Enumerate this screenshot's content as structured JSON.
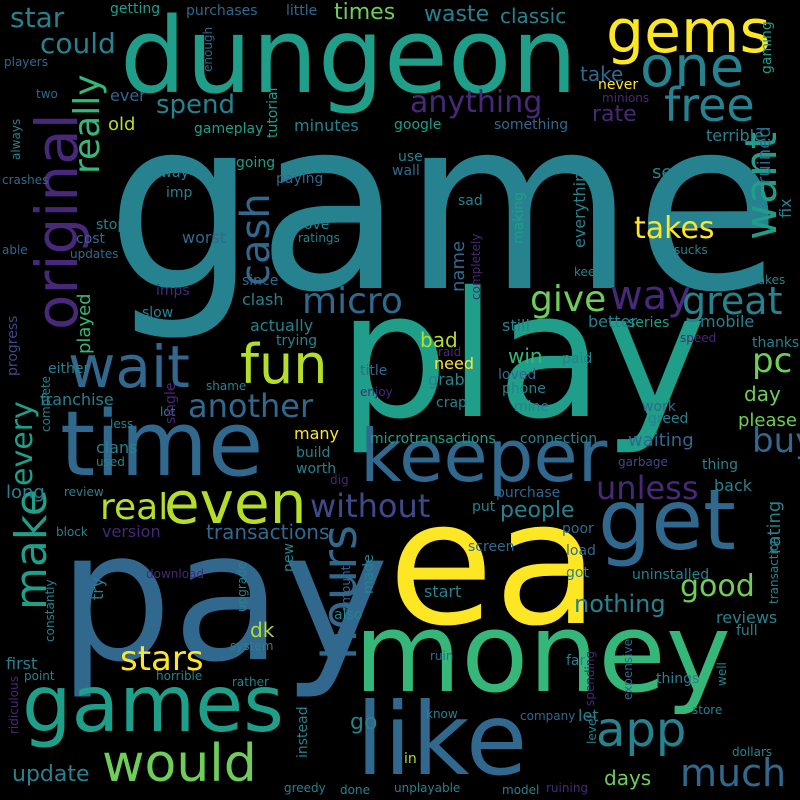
{
  "palette": {
    "yellow": "#fde725",
    "lime": "#b5de2b",
    "green": "#6ece58",
    "seagreen": "#35b779",
    "teal": "#1f9e89",
    "cyan": "#26828e",
    "blue": "#31688e",
    "indigo": "#3e4989",
    "purple": "#482878",
    "dark": "#440154"
  },
  "words": [
    "game",
    "play",
    "pay",
    "ea",
    "money",
    "dungeon",
    "time",
    "keeper",
    "games",
    "like",
    "get",
    "gems",
    "one",
    "free",
    "original",
    "wait",
    "fun",
    "even",
    "would",
    "hours",
    "make",
    "app",
    "want",
    "cash",
    "micro",
    "give",
    "great",
    "way",
    "pc",
    "another",
    "buy",
    "unless",
    "real",
    "without",
    "good",
    "every",
    "stars",
    "much",
    "update",
    "takes",
    "really",
    "spend",
    "anything",
    "could",
    "star",
    "waste",
    "classic",
    "getting",
    "purchases",
    "little",
    "times",
    "rate",
    "take",
    "never",
    "minions",
    "ruined",
    "gaming",
    "players",
    "enough",
    "two",
    "ever",
    "old",
    "tutorial",
    "minutes",
    "google",
    "something",
    "gameplay",
    "always",
    "crashes",
    "terrible",
    "everything",
    "use",
    "wall",
    "going",
    "away",
    "imp",
    "paying",
    "sad",
    "see",
    "fix",
    "stop",
    "worst",
    "cost",
    "able",
    "love",
    "ratings",
    "making",
    "updates",
    "sucks",
    "since",
    "keep",
    "imps",
    "makes",
    "clash",
    "slow",
    "completely",
    "played",
    "progress",
    "actually",
    "trying",
    "name",
    "bad",
    "still",
    "better",
    "series",
    "mobile",
    "thanks",
    "speed",
    "either",
    "raid",
    "need",
    "win",
    "paid",
    "franchise",
    "shame",
    "title",
    "grab",
    "loved",
    "enjoy",
    "phone",
    "day",
    "lot",
    "crap",
    "mine",
    "please",
    "work",
    "greed",
    "single",
    "less",
    "many",
    "microtransactions",
    "connection",
    "waiting",
    "clans",
    "complete",
    "used",
    "build",
    "worth",
    "garbage",
    "thing",
    "long",
    "review",
    "dig",
    "purchase",
    "back",
    "transactions",
    "version",
    "put",
    "people",
    "rating",
    "block",
    "poor",
    "download",
    "new",
    "screen",
    "load",
    "try",
    "upgrade",
    "made",
    "amount",
    "got",
    "uninstalled",
    "transaction",
    "constantly",
    "nothing",
    "start",
    "dk",
    "also",
    "reviews",
    "full",
    "first",
    "system",
    "ruin",
    "far",
    "expensive",
    "point",
    "horrible",
    "rather",
    "things",
    "well",
    "ridiculous",
    "go",
    "instead",
    "spending",
    "know",
    "let",
    "company",
    "store",
    "level",
    "in",
    "dollars",
    "greedy",
    "done",
    "unplayable",
    "model",
    "ruining",
    "days"
  ]
}
